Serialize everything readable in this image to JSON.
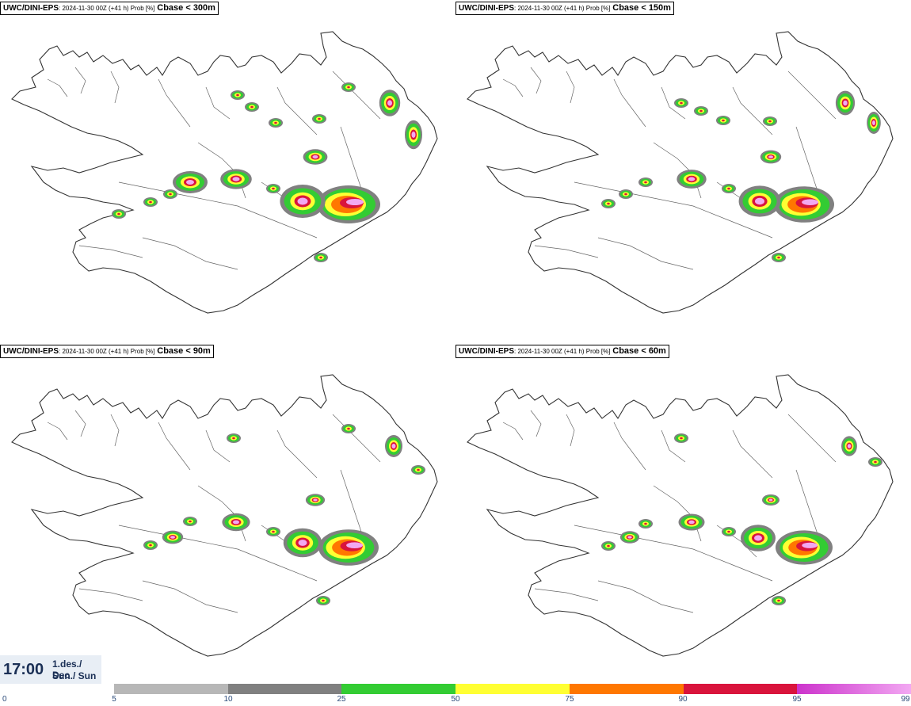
{
  "panels": [
    {
      "source": "UWC/DINI-EPS",
      "meta": ": 2024-11-30 00Z (+41 h) Prob [%]",
      "variable": "Cbase < 300m"
    },
    {
      "source": "UWC/DINI-EPS",
      "meta": ": 2024-11-30 00Z (+41 h) Prob [%]",
      "variable": "Cbase < 150m"
    },
    {
      "source": "UWC/DINI-EPS",
      "meta": ": 2024-11-30 00Z (+41 h) Prob [%]",
      "variable": "Cbase < 90m"
    },
    {
      "source": "UWC/DINI-EPS",
      "meta": ": 2024-11-30 00Z (+41 h) Prob [%]",
      "variable": "Cbase < 60m"
    }
  ],
  "time_box": {
    "time": "17:00",
    "date_line1": "1.des./ Dec",
    "date_line2": "Sun./ Sun"
  },
  "legend": {
    "ticks": [
      "0",
      "5",
      "10",
      "25",
      "50",
      "75",
      "90",
      "95",
      "99"
    ],
    "colors": [
      "#b7b7b7",
      "#808080",
      "#33cc33",
      "#ffff33",
      "#ff7700",
      "#d9143c",
      "#cc33cc",
      "#f2a8f2"
    ]
  }
}
